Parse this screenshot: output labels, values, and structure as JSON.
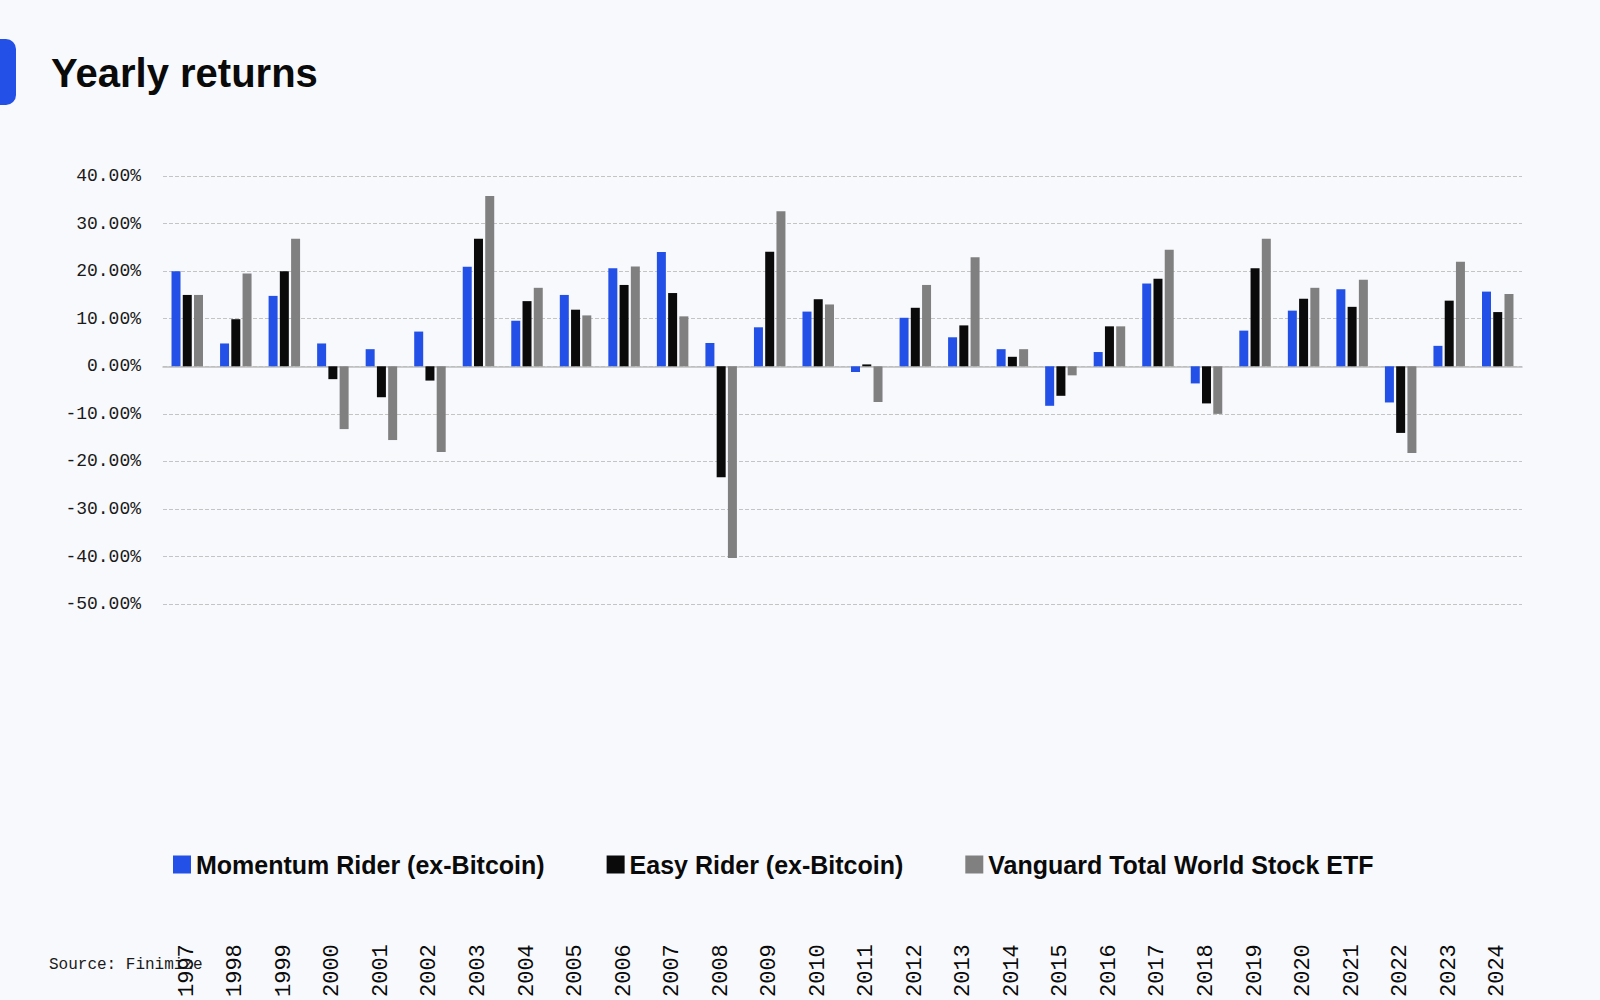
{
  "chart_data": {
    "type": "bar",
    "title": "Yearly returns",
    "source": "Source: Finimize",
    "categories": [
      "1997",
      "1998",
      "1999",
      "2000",
      "2001",
      "2002",
      "2003",
      "2004",
      "2005",
      "2006",
      "2007",
      "2008",
      "2009",
      "2010",
      "2011",
      "2012",
      "2013",
      "2014",
      "2015",
      "2016",
      "2017",
      "2018",
      "2019",
      "2020",
      "2021",
      "2022",
      "2023",
      "2024"
    ],
    "series": [
      {
        "name": "Momentum Rider (ex-Bitcoin)",
        "color": "#2350e6",
        "values": [
          20,
          4.8,
          14.8,
          4.8,
          3.6,
          7.3,
          20.9,
          9.6,
          15,
          20.6,
          24,
          4.9,
          8.2,
          11.5,
          -1.2,
          10.2,
          6.1,
          3.6,
          -8.3,
          3,
          17.4,
          -3.6,
          7.5,
          11.7,
          16.2,
          -7.6,
          4.3,
          15.7
        ]
      },
      {
        "name": "Easy Rider (ex-Bitcoin)",
        "color": "#0a0a0a",
        "values": [
          15,
          9.9,
          20,
          -2.7,
          -6.5,
          -3,
          26.8,
          13.7,
          11.9,
          17.1,
          15.4,
          -23.3,
          24.1,
          14.1,
          0.4,
          12.3,
          8.6,
          2,
          -6.2,
          8.4,
          18.4,
          -7.8,
          20.6,
          14.2,
          12.5,
          -14,
          13.8,
          11.4
        ]
      },
      {
        "name": "Vanguard Total World Stock ETF",
        "color": "#808080",
        "values": [
          15,
          19.5,
          26.8,
          -13.2,
          -15.5,
          -18,
          35.8,
          16.5,
          10.7,
          21,
          10.5,
          -40.3,
          32.6,
          13,
          -7.5,
          17.1,
          22.9,
          3.6,
          -1.9,
          8.4,
          24.5,
          -10,
          26.8,
          16.5,
          18.2,
          -18.2,
          22,
          15.2
        ]
      }
    ],
    "ylim": [
      -50,
      40
    ],
    "yticks": [
      {
        "value": -50,
        "label": "-50.00%"
      },
      {
        "value": -40,
        "label": "-40.00%"
      },
      {
        "value": -30,
        "label": "-30.00%"
      },
      {
        "value": -20,
        "label": "-20.00%"
      },
      {
        "value": -10,
        "label": "-10.00%"
      },
      {
        "value": 0,
        "label": "0.00%"
      },
      {
        "value": 10,
        "label": "10.00%"
      },
      {
        "value": 20,
        "label": "20.00%"
      },
      {
        "value": 30,
        "label": "30.00%"
      },
      {
        "value": 40,
        "label": "40.00%"
      }
    ],
    "grid": true,
    "legend": "bottom"
  }
}
